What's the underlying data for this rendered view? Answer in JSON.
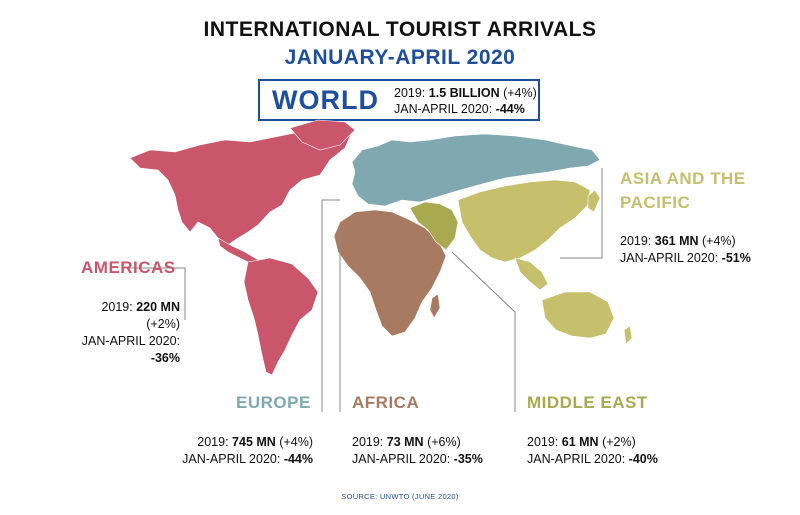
{
  "title": "INTERNATIONAL TOURIST ARRIVALS",
  "subtitle": "JANUARY-APRIL 2020",
  "world": {
    "label": "WORLD",
    "line1_prefix": "2019: ",
    "line1_value": "1.5 BILLION",
    "line1_suffix": " (+4%)",
    "line2_prefix": "JAN-APRIL 2020: ",
    "line2_value": "-44%"
  },
  "regions": {
    "americas": {
      "name": "AMERICAS",
      "color": "#c9566a",
      "line1_prefix": "2019: ",
      "line1_value": "220 MN",
      "line1_suffix": " (+2%)",
      "line2_prefix": "JAN-APRIL 2020: ",
      "line2_value": "-36%"
    },
    "europe": {
      "name": "EUROPE",
      "color": "#7fa8b0",
      "line1_prefix": "2019: ",
      "line1_value": "745 MN",
      "line1_suffix": " (+4%)",
      "line2_prefix": "JAN-APRIL 2020: ",
      "line2_value": "-44%"
    },
    "africa": {
      "name": "AFRICA",
      "color": "#a87a62",
      "line1_prefix": "2019: ",
      "line1_value": "73 MN",
      "line1_suffix": " (+6%)",
      "line2_prefix": "JAN-APRIL 2020: ",
      "line2_value": "-35%"
    },
    "middle_east": {
      "name": "MIDDLE EAST",
      "color": "#a9a94f",
      "line1_prefix": "2019: ",
      "line1_value": "61 MN",
      "line1_suffix": " (+2%)",
      "line2_prefix": "JAN-APRIL 2020: ",
      "line2_value": "-40%"
    },
    "asia_pacific": {
      "name_line1": "ASIA AND THE",
      "name_line2": "PACIFIC",
      "color": "#c6bf6c",
      "line1_prefix": "2019: ",
      "line1_value": "361 MN",
      "line1_suffix": " (+4%)",
      "line2_prefix": "JAN-APRIL 2020: ",
      "line2_value": "-51%"
    }
  },
  "source": "SOURCE: UNWTO (JUNE 2020)"
}
